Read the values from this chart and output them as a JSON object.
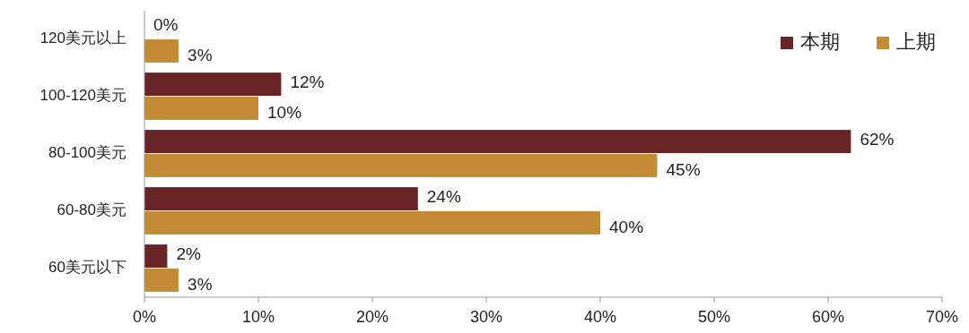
{
  "chart_data": {
    "type": "bar",
    "orientation": "horizontal",
    "categories": [
      "120美元以上",
      "100-120美元",
      "80-100美元",
      "60-80美元",
      "60美元以下"
    ],
    "series": [
      {
        "name": "本期",
        "color": "#6b2426",
        "values": [
          0,
          12,
          62,
          24,
          2
        ],
        "value_labels": [
          "0%",
          "12%",
          "62%",
          "24%",
          "2%"
        ]
      },
      {
        "name": "上期",
        "color": "#c48a35",
        "values": [
          3,
          10,
          45,
          40,
          3
        ],
        "value_labels": [
          "3%",
          "10%",
          "45%",
          "40%",
          "3%"
        ]
      }
    ],
    "xlim": [
      0,
      70
    ],
    "xticks": [
      {
        "value": 0,
        "label": "0%"
      },
      {
        "value": 10,
        "label": "10%"
      },
      {
        "value": 20,
        "label": "20%"
      },
      {
        "value": 30,
        "label": "30%"
      },
      {
        "value": 40,
        "label": "40%"
      },
      {
        "value": 50,
        "label": "50%"
      },
      {
        "value": 60,
        "label": "60%"
      },
      {
        "value": 70,
        "label": "70%"
      }
    ],
    "grid": false,
    "legend": "top right"
  }
}
